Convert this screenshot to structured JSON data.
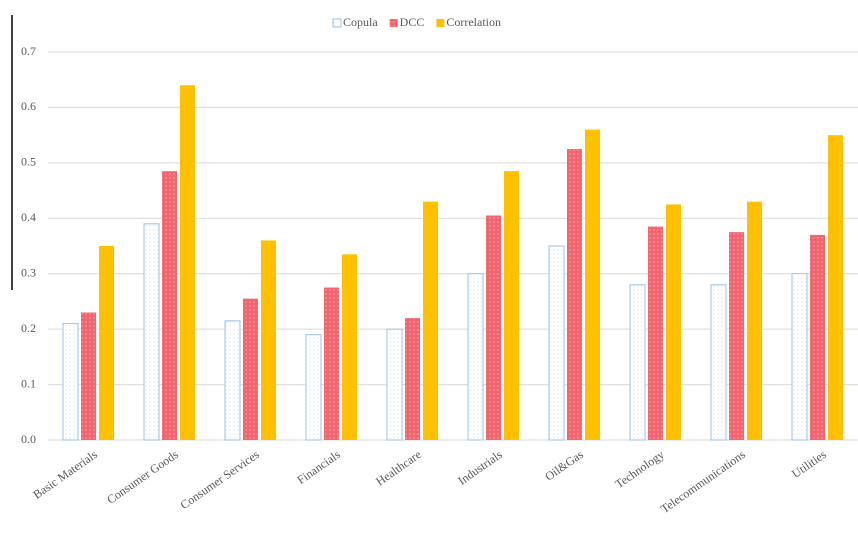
{
  "chart_data": {
    "type": "bar",
    "categories": [
      "Basic Materials",
      "Consumer Goods",
      "Consumer Services",
      "Financials",
      "Healthcare",
      "Industrials",
      "Oil&Gas",
      "Technology",
      "Telecommunications",
      "Utilities"
    ],
    "series": [
      {
        "name": "Copula",
        "color": "#9dc3e6",
        "values": [
          0.21,
          0.39,
          0.215,
          0.19,
          0.2,
          0.3,
          0.35,
          0.28,
          0.28,
          0.3
        ]
      },
      {
        "name": "DCC",
        "color": "#f4646e",
        "values": [
          0.23,
          0.485,
          0.255,
          0.275,
          0.22,
          0.405,
          0.525,
          0.385,
          0.375,
          0.37
        ]
      },
      {
        "name": "Correlation",
        "color": "#ffc000",
        "values": [
          0.35,
          0.64,
          0.36,
          0.335,
          0.43,
          0.485,
          0.56,
          0.425,
          0.43,
          0.55
        ]
      }
    ],
    "ylim": [
      0,
      0.7
    ],
    "yticks": [
      {
        "value": 0,
        "label": "0.0"
      },
      0.1,
      0.2,
      0.3,
      0.4,
      0.5,
      0.6,
      0.7
    ],
    "grid": true,
    "legend": "top"
  }
}
